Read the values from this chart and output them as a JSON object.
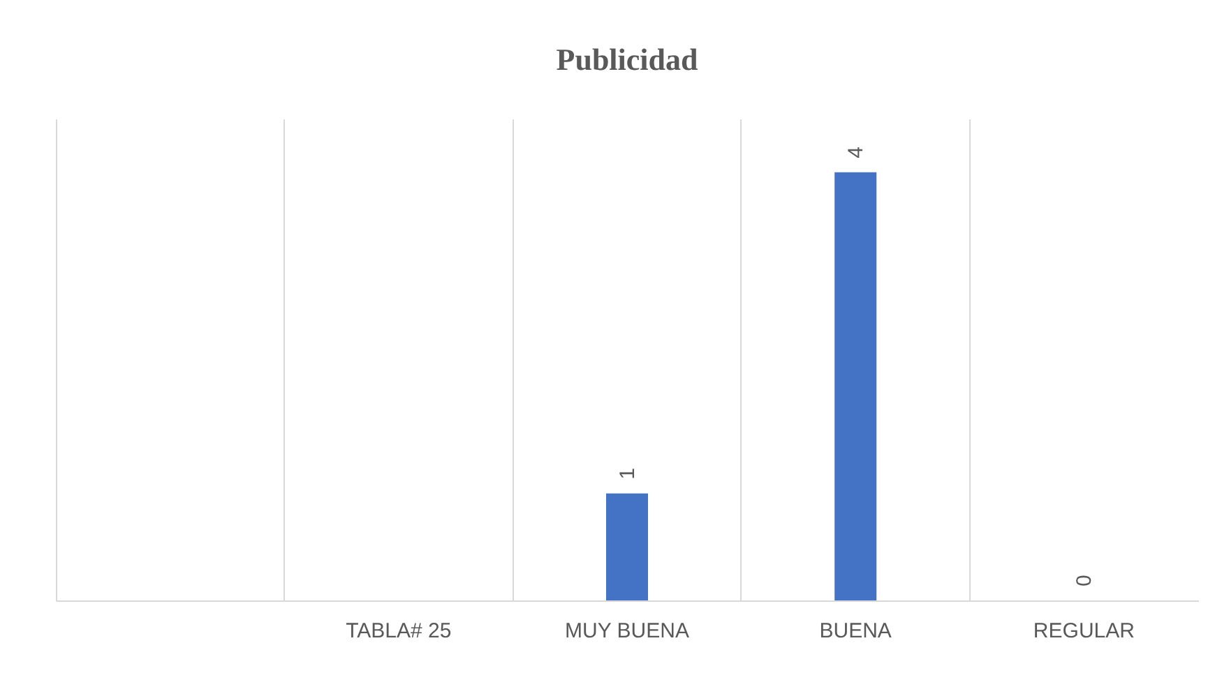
{
  "chart_data": {
    "type": "bar",
    "title": "Publicidad",
    "categories": [
      null,
      "TABLA# 25",
      "MUY BUENA",
      "BUENA",
      "REGULAR"
    ],
    "values": [
      null,
      null,
      1,
      4,
      0
    ],
    "color": "#4472c4",
    "ylim": [
      0,
      4.5
    ],
    "data_labels": true,
    "grid": "x",
    "tick_labels": "x"
  }
}
